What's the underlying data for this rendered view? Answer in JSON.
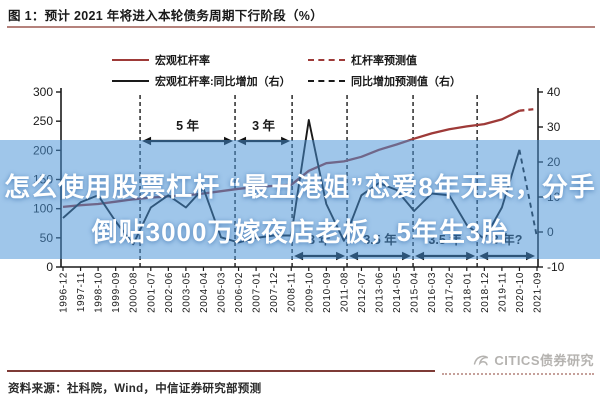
{
  "page": {
    "title": "图 1：预计 2021 年将进入本轮债务周期下行阶段（%）"
  },
  "banner": {
    "line1": "怎么使用股票杠杆 “最丑港姐”恋爱8年无果，分手",
    "line2": "倒贴3000万嫁夜店老板，5年生3胎",
    "bg_color": "rgba(70,145,215,0.52)",
    "text_color": "#ffffff"
  },
  "legend": {
    "items": [
      {
        "label": "宏观杠杆率",
        "color": "#9e3a38",
        "style": "solid"
      },
      {
        "label": "宏观杠杆率:同比增加（右）",
        "color": "#1a1a1a",
        "style": "solid"
      },
      {
        "label": "杠杆率预测值",
        "color": "#9e3a38",
        "style": "dashed"
      },
      {
        "label": "同比增加预测值（右）",
        "color": "#1a1a1a",
        "style": "dashed"
      }
    ]
  },
  "footer": {
    "source": "资料来源：社科院，Wind，中信证券研究部预测",
    "watermark": "CITICS债券研究"
  },
  "colors": {
    "title_rule": "#b5827c",
    "footer_rule": "#7e3b36",
    "axis": "#1a1a1a",
    "divider": "#1a1a1a",
    "leverage_line": "#9e3a38",
    "yoy_line": "#1a1a1a"
  },
  "chart_data": {
    "type": "line",
    "title": "预计 2021 年将进入本轮债务周期下行阶段（%）",
    "x_labels": [
      "1996-12",
      "1997-11",
      "1998-10",
      "1999-09",
      "2000-08",
      "2001-07",
      "2002-06",
      "2003-05",
      "2004-04",
      "2005-03",
      "2006-02",
      "2007-01",
      "2007-12",
      "2008-11",
      "2009-10",
      "2010-09",
      "2011-08",
      "2012-07",
      "2013-06",
      "2014-05",
      "2015-04",
      "2016-03",
      "2017-02",
      "2018-01",
      "2018-12",
      "2019-11",
      "2020-10",
      "2021-09"
    ],
    "left_axis": {
      "min": 0,
      "max": 300,
      "ticks": [
        0,
        50,
        100,
        150,
        200,
        250,
        300
      ]
    },
    "right_axis": {
      "min": -10,
      "max": 40,
      "ticks": [
        -10,
        0,
        10,
        20,
        30,
        40
      ]
    },
    "series": [
      {
        "name": "宏观杠杆率",
        "axis": "left",
        "color": "#9e3a38",
        "forecast_from_index": 26,
        "values": [
          103,
          106,
          108,
          112,
          116,
          119,
          121,
          123,
          126,
          130,
          134,
          137,
          139,
          141,
          165,
          178,
          181,
          189,
          201,
          210,
          220,
          229,
          236,
          241,
          245,
          253,
          268,
          271
        ]
      },
      {
        "name": "宏观杠杆率:同比增加（右）",
        "axis": "right",
        "color": "#1a1a1a",
        "forecast_from_index": 26,
        "values": [
          4,
          8.5,
          10.5,
          3,
          -3.5,
          7,
          10.5,
          7,
          12.5,
          -1.5,
          -3,
          -1.7,
          -1,
          -1,
          32,
          8,
          -2.5,
          10.5,
          14,
          12,
          6,
          11,
          10.5,
          2,
          -2,
          7,
          23.5,
          -1.5
        ]
      }
    ],
    "cycle_dividers_label_pos": [
      4.39,
      9.8,
      13.05,
      16.18,
      19.94,
      23.59
    ],
    "cycle_spans": [
      {
        "label": "5 年",
        "from": 4.39,
        "to": 9.8,
        "row": "top"
      },
      {
        "label": "3 年",
        "from": 9.8,
        "to": 13.05,
        "row": "top"
      },
      {
        "label": "3 年",
        "from": 13.05,
        "to": 16.18,
        "row": "bottom"
      },
      {
        "label": "3.5 年",
        "from": 16.18,
        "to": 19.94,
        "row": "bottom"
      },
      {
        "label": "3.5 年",
        "from": 19.94,
        "to": 23.59,
        "row": "bottom"
      },
      {
        "label": "3 年?",
        "from": 23.59,
        "to": 27,
        "row": "bottom"
      }
    ]
  }
}
